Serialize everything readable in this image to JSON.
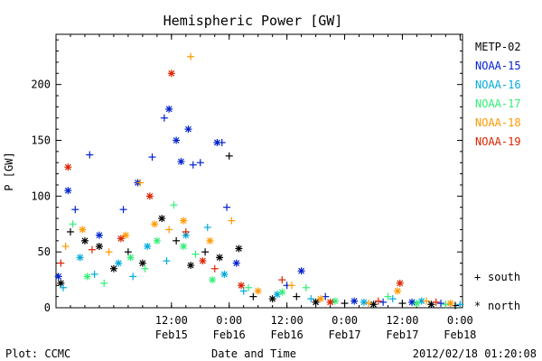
{
  "chart_data": {
    "type": "scatter",
    "title": "Hemispheric Power [GW]",
    "ylabel": "P [GW]",
    "xlabel": "Date and Time",
    "xlim": [
      "2012-02-14T12:00",
      "2012-02-18T00:30"
    ],
    "ylim": [
      0,
      245
    ],
    "grid": false,
    "y_ticks": [
      0,
      50,
      100,
      150,
      200
    ],
    "x_ticks": [
      {
        "at": "2012-02-15T12:00",
        "time": "12:00",
        "date": "Feb15"
      },
      {
        "at": "2012-02-16T00:00",
        "time": "0:00",
        "date": "Feb16"
      },
      {
        "at": "2012-02-16T12:00",
        "time": "12:00",
        "date": "Feb16"
      },
      {
        "at": "2012-02-17T00:00",
        "time": "0:00",
        "date": "Feb17"
      },
      {
        "at": "2012-02-17T12:00",
        "time": "12:00",
        "date": "Feb17"
      },
      {
        "at": "2012-02-18T00:00",
        "time": "0:00",
        "date": "Feb18"
      }
    ],
    "legend_placement": "right",
    "marker_legend": [
      {
        "symbol": "+",
        "label": "south"
      },
      {
        "symbol": "*",
        "label": "north"
      }
    ],
    "series": [
      {
        "name": "METP-02",
        "color": "#000000",
        "points": [
          {
            "x": "2012-02-14T13:00",
            "y": 22,
            "m": "*"
          },
          {
            "x": "2012-02-14T15:00",
            "y": 68,
            "m": "+"
          },
          {
            "x": "2012-02-14T18:00",
            "y": 60,
            "m": "*"
          },
          {
            "x": "2012-02-14T21:00",
            "y": 55,
            "m": "*"
          },
          {
            "x": "2012-02-15T00:00",
            "y": 35,
            "m": "*"
          },
          {
            "x": "2012-02-15T03:00",
            "y": 50,
            "m": "+"
          },
          {
            "x": "2012-02-15T06:00",
            "y": 40,
            "m": "*"
          },
          {
            "x": "2012-02-15T10:00",
            "y": 80,
            "m": "*"
          },
          {
            "x": "2012-02-15T13:00",
            "y": 60,
            "m": "+"
          },
          {
            "x": "2012-02-15T16:00",
            "y": 38,
            "m": "*"
          },
          {
            "x": "2012-02-15T19:00",
            "y": 50,
            "m": "+"
          },
          {
            "x": "2012-02-15T22:00",
            "y": 45,
            "m": "*"
          },
          {
            "x": "2012-02-16T00:00",
            "y": 136,
            "m": "+"
          },
          {
            "x": "2012-02-16T02:00",
            "y": 53,
            "m": "*"
          },
          {
            "x": "2012-02-16T05:00",
            "y": 10,
            "m": "+"
          },
          {
            "x": "2012-02-16T09:00",
            "y": 8,
            "m": "*"
          },
          {
            "x": "2012-02-16T14:00",
            "y": 10,
            "m": "+"
          },
          {
            "x": "2012-02-16T18:00",
            "y": 5,
            "m": "*"
          },
          {
            "x": "2012-02-17T00:00",
            "y": 4,
            "m": "+"
          },
          {
            "x": "2012-02-17T06:00",
            "y": 3,
            "m": "*"
          },
          {
            "x": "2012-02-17T12:00",
            "y": 4,
            "m": "+"
          },
          {
            "x": "2012-02-17T18:00",
            "y": 3,
            "m": "*"
          },
          {
            "x": "2012-02-17T23:00",
            "y": 2,
            "m": "+"
          }
        ]
      },
      {
        "name": "NOAA-15",
        "color": "#0022cc",
        "points": [
          {
            "x": "2012-02-14T12:30",
            "y": 28,
            "m": "*"
          },
          {
            "x": "2012-02-14T14:30",
            "y": 105,
            "m": "*"
          },
          {
            "x": "2012-02-14T16:00",
            "y": 88,
            "m": "+"
          },
          {
            "x": "2012-02-14T19:00",
            "y": 137,
            "m": "+"
          },
          {
            "x": "2012-02-14T21:00",
            "y": 65,
            "m": "*"
          },
          {
            "x": "2012-02-15T02:00",
            "y": 88,
            "m": "+"
          },
          {
            "x": "2012-02-15T05:00",
            "y": 112,
            "m": "*"
          },
          {
            "x": "2012-02-15T08:00",
            "y": 135,
            "m": "+"
          },
          {
            "x": "2012-02-15T10:30",
            "y": 170,
            "m": "+"
          },
          {
            "x": "2012-02-15T11:30",
            "y": 178,
            "m": "*"
          },
          {
            "x": "2012-02-15T13:00",
            "y": 150,
            "m": "*"
          },
          {
            "x": "2012-02-15T14:00",
            "y": 131,
            "m": "*"
          },
          {
            "x": "2012-02-15T15:30",
            "y": 160,
            "m": "*"
          },
          {
            "x": "2012-02-15T16:30",
            "y": 128,
            "m": "+"
          },
          {
            "x": "2012-02-15T18:00",
            "y": 130,
            "m": "+"
          },
          {
            "x": "2012-02-15T21:30",
            "y": 148,
            "m": "*"
          },
          {
            "x": "2012-02-15T22:30",
            "y": 148,
            "m": "+"
          },
          {
            "x": "2012-02-15T23:30",
            "y": 90,
            "m": "+"
          },
          {
            "x": "2012-02-16T01:30",
            "y": 40,
            "m": "*"
          },
          {
            "x": "2012-02-16T12:00",
            "y": 20,
            "m": "+"
          },
          {
            "x": "2012-02-16T15:00",
            "y": 33,
            "m": "*"
          },
          {
            "x": "2012-02-16T20:00",
            "y": 10,
            "m": "+"
          },
          {
            "x": "2012-02-17T02:00",
            "y": 6,
            "m": "*"
          },
          {
            "x": "2012-02-17T08:00",
            "y": 5,
            "m": "+"
          },
          {
            "x": "2012-02-17T14:00",
            "y": 5,
            "m": "*"
          },
          {
            "x": "2012-02-17T20:00",
            "y": 4,
            "m": "+"
          }
        ]
      },
      {
        "name": "NOAA-16",
        "color": "#00aadd",
        "points": [
          {
            "x": "2012-02-14T13:30",
            "y": 18,
            "m": "+"
          },
          {
            "x": "2012-02-14T17:00",
            "y": 45,
            "m": "*"
          },
          {
            "x": "2012-02-14T20:00",
            "y": 30,
            "m": "+"
          },
          {
            "x": "2012-02-15T01:00",
            "y": 40,
            "m": "*"
          },
          {
            "x": "2012-02-15T04:00",
            "y": 28,
            "m": "+"
          },
          {
            "x": "2012-02-15T07:00",
            "y": 55,
            "m": "*"
          },
          {
            "x": "2012-02-15T11:00",
            "y": 42,
            "m": "+"
          },
          {
            "x": "2012-02-15T15:00",
            "y": 65,
            "m": "*"
          },
          {
            "x": "2012-02-15T19:30",
            "y": 72,
            "m": "+"
          },
          {
            "x": "2012-02-15T23:00",
            "y": 30,
            "m": "*"
          },
          {
            "x": "2012-02-16T03:00",
            "y": 15,
            "m": "+"
          },
          {
            "x": "2012-02-16T10:00",
            "y": 12,
            "m": "*"
          },
          {
            "x": "2012-02-16T17:00",
            "y": 8,
            "m": "+"
          },
          {
            "x": "2012-02-17T04:00",
            "y": 5,
            "m": "*"
          },
          {
            "x": "2012-02-17T10:00",
            "y": 8,
            "m": "+"
          },
          {
            "x": "2012-02-17T16:00",
            "y": 6,
            "m": "*"
          },
          {
            "x": "2012-02-18T00:00",
            "y": 3,
            "m": "+"
          }
        ]
      },
      {
        "name": "NOAA-17",
        "color": "#33ee77",
        "points": [
          {
            "x": "2012-02-14T15:30",
            "y": 75,
            "m": "+"
          },
          {
            "x": "2012-02-14T18:30",
            "y": 28,
            "m": "*"
          },
          {
            "x": "2012-02-14T22:00",
            "y": 22,
            "m": "+"
          },
          {
            "x": "2012-02-15T03:30",
            "y": 45,
            "m": "*"
          },
          {
            "x": "2012-02-15T06:30",
            "y": 35,
            "m": "+"
          },
          {
            "x": "2012-02-15T09:00",
            "y": 60,
            "m": "*"
          },
          {
            "x": "2012-02-15T12:30",
            "y": 92,
            "m": "+"
          },
          {
            "x": "2012-02-15T14:30",
            "y": 55,
            "m": "*"
          },
          {
            "x": "2012-02-15T17:00",
            "y": 48,
            "m": "+"
          },
          {
            "x": "2012-02-15T20:30",
            "y": 25,
            "m": "*"
          },
          {
            "x": "2012-02-16T04:00",
            "y": 18,
            "m": "+"
          },
          {
            "x": "2012-02-16T11:00",
            "y": 14,
            "m": "*"
          },
          {
            "x": "2012-02-16T16:00",
            "y": 18,
            "m": "+"
          },
          {
            "x": "2012-02-16T22:00",
            "y": 6,
            "m": "*"
          },
          {
            "x": "2012-02-17T09:00",
            "y": 10,
            "m": "+"
          },
          {
            "x": "2012-02-17T15:00",
            "y": 4,
            "m": "*"
          },
          {
            "x": "2012-02-17T21:00",
            "y": 3,
            "m": "+"
          }
        ]
      },
      {
        "name": "NOAA-18",
        "color": "#ff9900",
        "points": [
          {
            "x": "2012-02-14T14:00",
            "y": 55,
            "m": "+"
          },
          {
            "x": "2012-02-14T17:30",
            "y": 70,
            "m": "*"
          },
          {
            "x": "2012-02-14T23:00",
            "y": 50,
            "m": "+"
          },
          {
            "x": "2012-02-15T02:30",
            "y": 65,
            "m": "*"
          },
          {
            "x": "2012-02-15T05:30",
            "y": 112,
            "m": "+"
          },
          {
            "x": "2012-02-15T08:30",
            "y": 75,
            "m": "*"
          },
          {
            "x": "2012-02-15T11:30",
            "y": 70,
            "m": "+"
          },
          {
            "x": "2012-02-15T14:30",
            "y": 78,
            "m": "*"
          },
          {
            "x": "2012-02-15T16:00",
            "y": 225,
            "m": "+"
          },
          {
            "x": "2012-02-15T20:00",
            "y": 60,
            "m": "*"
          },
          {
            "x": "2012-02-16T00:30",
            "y": 78,
            "m": "+"
          },
          {
            "x": "2012-02-16T06:00",
            "y": 15,
            "m": "*"
          },
          {
            "x": "2012-02-16T13:00",
            "y": 20,
            "m": "+"
          },
          {
            "x": "2012-02-16T19:00",
            "y": 8,
            "m": "*"
          },
          {
            "x": "2012-02-17T05:00",
            "y": 4,
            "m": "+"
          },
          {
            "x": "2012-02-17T11:00",
            "y": 15,
            "m": "*"
          },
          {
            "x": "2012-02-17T17:00",
            "y": 6,
            "m": "+"
          },
          {
            "x": "2012-02-17T22:00",
            "y": 4,
            "m": "*"
          }
        ]
      },
      {
        "name": "NOAA-19",
        "color": "#dd2200",
        "points": [
          {
            "x": "2012-02-14T13:00",
            "y": 40,
            "m": "+"
          },
          {
            "x": "2012-02-14T14:30",
            "y": 126,
            "m": "*"
          },
          {
            "x": "2012-02-14T19:30",
            "y": 52,
            "m": "+"
          },
          {
            "x": "2012-02-15T01:30",
            "y": 62,
            "m": "*"
          },
          {
            "x": "2012-02-15T07:30",
            "y": 100,
            "m": "*"
          },
          {
            "x": "2012-02-15T12:00",
            "y": 210,
            "m": "*"
          },
          {
            "x": "2012-02-15T15:00",
            "y": 68,
            "m": "+"
          },
          {
            "x": "2012-02-15T18:30",
            "y": 42,
            "m": "*"
          },
          {
            "x": "2012-02-15T21:00",
            "y": 35,
            "m": "+"
          },
          {
            "x": "2012-02-16T02:30",
            "y": 20,
            "m": "*"
          },
          {
            "x": "2012-02-16T11:00",
            "y": 25,
            "m": "+"
          },
          {
            "x": "2012-02-16T21:00",
            "y": 5,
            "m": "*"
          },
          {
            "x": "2012-02-17T07:00",
            "y": 6,
            "m": "+"
          },
          {
            "x": "2012-02-17T11:30",
            "y": 22,
            "m": "*"
          },
          {
            "x": "2012-02-17T19:00",
            "y": 5,
            "m": "+"
          }
        ]
      }
    ]
  },
  "footer": {
    "left": "Plot: CCMC",
    "center": "Date and Time",
    "right": "2012/02/18 01:20:08"
  }
}
